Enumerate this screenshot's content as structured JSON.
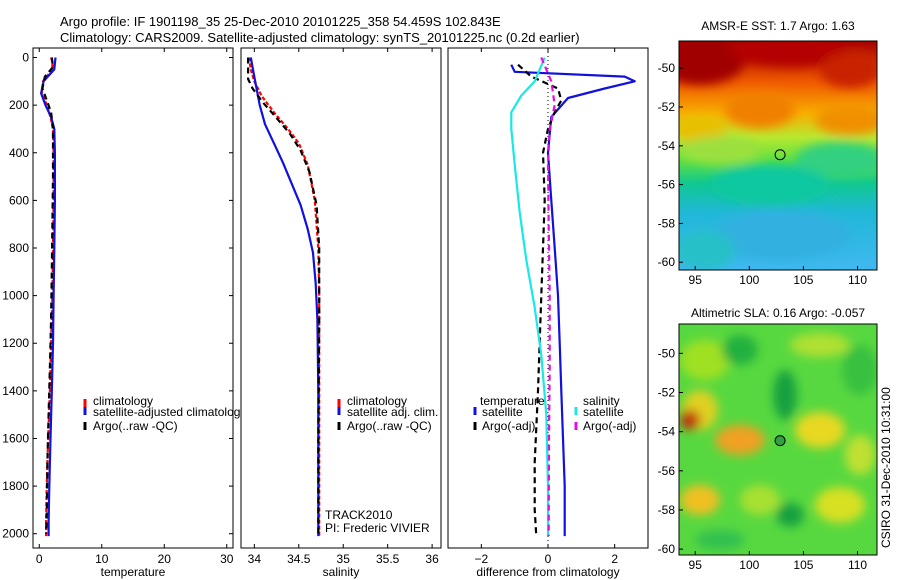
{
  "title_line1": "Argo profile: IF 1901198_35 25-Dec-2010 20101225_358 54.459S 102.843E",
  "title_line2": "Climatology: CARS2009. Satellite-adjusted climatology: synTS_20101225.nc (0.2d earlier)",
  "footer": "CSIRO 31-Dec-2010 10:31:00",
  "colors": {
    "climatology": "#ff0000",
    "satellite": "#1010e0",
    "argo": "#000000",
    "sat_salinity": "#18e8e8",
    "argo_salinity": "#e010e0"
  },
  "chart_data": [
    {
      "type": "line",
      "id": "temperature",
      "xlabel": "temperature",
      "ylabel": "",
      "xlim": [
        -1,
        31
      ],
      "ylim": [
        2060,
        -40
      ],
      "xticks": [
        0,
        10,
        20,
        30
      ],
      "yticks": [
        0,
        200,
        400,
        600,
        800,
        1000,
        1200,
        1400,
        1600,
        1800,
        2000
      ],
      "legend": [
        "climatology",
        "satellite-adjusted climatolog",
        "Argo(..raw -QC)"
      ],
      "series": [
        {
          "name": "climatology",
          "color": "#ff0000",
          "dash": "4,2",
          "x": [
            1.9,
            2.1,
            2.1,
            0.6,
            0.4,
            1.2,
            1.8,
            2.2,
            2.3,
            2.3,
            2.2,
            2.1,
            1.9,
            1.7,
            1.5,
            1.3,
            1.2,
            1.1,
            1.1
          ],
          "y": [
            0,
            20,
            50,
            100,
            150,
            200,
            250,
            300,
            400,
            600,
            800,
            1000,
            1200,
            1400,
            1550,
            1700,
            1800,
            1950,
            2010
          ]
        },
        {
          "name": "satellite-adjusted climatology",
          "color": "#1010e0",
          "dash": "",
          "x": [
            2.6,
            2.4,
            0.7,
            0.3,
            1.0,
            1.9,
            2.4,
            2.5,
            2.5,
            2.4,
            2.3,
            2.2,
            2.0,
            1.8,
            1.6,
            1.5,
            1.5
          ],
          "y": [
            0,
            50,
            100,
            150,
            200,
            250,
            300,
            400,
            600,
            800,
            1000,
            1200,
            1400,
            1600,
            1800,
            1950,
            2010
          ]
        },
        {
          "name": "Argo(..raw -QC)",
          "color": "#000000",
          "dash": "6,4",
          "x": [
            2.0,
            2.2,
            0.9,
            0.5,
            1.2,
            1.9,
            2.2,
            2.2,
            2.1,
            2.0,
            1.9,
            1.7,
            1.5,
            1.3,
            1.2,
            1.1
          ],
          "y": [
            0,
            40,
            80,
            130,
            180,
            230,
            300,
            500,
            700,
            900,
            1100,
            1300,
            1500,
            1700,
            1900,
            2000
          ]
        }
      ]
    },
    {
      "type": "line",
      "id": "salinity",
      "xlabel": "salinity",
      "ylabel": "",
      "xlim": [
        33.85,
        36.1
      ],
      "ylim": [
        2060,
        -40
      ],
      "xticks": [
        34,
        34.5,
        35,
        35.5,
        36
      ],
      "xticklabels": [
        "34",
        "34.5",
        "35",
        "35.5",
        "36"
      ],
      "legend": [
        "climatology",
        "satellite adj. clim.",
        "Argo(..raw -QC)"
      ],
      "annotation": [
        "TRACK2010",
        "PI: Frederic VIVIER"
      ],
      "series": [
        {
          "name": "climatology",
          "color": "#ff0000",
          "dash": "4,2",
          "x": [
            33.94,
            33.96,
            34.0,
            34.08,
            34.22,
            34.38,
            34.5,
            34.6,
            34.68,
            34.72,
            34.73,
            34.73,
            34.73,
            34.73
          ],
          "y": [
            0,
            50,
            100,
            160,
            230,
            300,
            360,
            450,
            600,
            800,
            1000,
            1400,
            1800,
            2010
          ]
        },
        {
          "name": "satellite adj. clim.",
          "color": "#1010e0",
          "dash": "",
          "x": [
            33.96,
            33.99,
            34.02,
            34.06,
            34.12,
            34.22,
            34.32,
            34.42,
            34.52,
            34.6,
            34.66,
            34.69,
            34.71,
            34.72,
            34.72,
            34.72
          ],
          "y": [
            0,
            60,
            120,
            200,
            280,
            360,
            440,
            530,
            620,
            720,
            820,
            950,
            1100,
            1400,
            1800,
            2010
          ]
        },
        {
          "name": "Argo(..raw -QC)",
          "color": "#000000",
          "dash": "6,4",
          "x": [
            33.93,
            33.93,
            33.98,
            34.1,
            34.24,
            34.4,
            34.52,
            34.62,
            34.7,
            34.73,
            34.73,
            34.72,
            34.72
          ],
          "y": [
            0,
            90,
            130,
            190,
            250,
            320,
            390,
            480,
            620,
            800,
            1100,
            1600,
            2010
          ]
        }
      ]
    },
    {
      "type": "line",
      "id": "difference",
      "xlabel": "difference from climatology",
      "ylabel": "",
      "xlim": [
        -3,
        3
      ],
      "ylim": [
        2060,
        -40
      ],
      "xticks": [
        -2,
        0,
        2
      ],
      "xticklabels": [
        "−2",
        "0",
        "2"
      ],
      "legend": [
        "temperature",
        "satellite",
        "Argo(-adj)",
        "salinity",
        "satellite",
        "Argo(-adj)"
      ],
      "series": [
        {
          "name": "temperature satellite",
          "color": "#1010e0",
          "dash": "",
          "x": [
            -1.1,
            -1.0,
            2.3,
            2.6,
            1.7,
            0.6,
            0.1,
            0.0,
            0.1,
            0.2,
            0.3,
            0.35,
            0.4,
            0.45,
            0.5,
            0.5,
            0.5
          ],
          "y": [
            30,
            60,
            80,
            100,
            130,
            170,
            250,
            400,
            600,
            800,
            1000,
            1200,
            1400,
            1600,
            1800,
            1950,
            2010
          ]
        },
        {
          "name": "temperature Argo(-adj)",
          "color": "#000000",
          "dash": "6,4",
          "x": [
            -0.9,
            -0.5,
            0.3,
            0.4,
            0.2,
            0.0,
            -0.15,
            -0.1,
            -0.2,
            -0.3,
            -0.4,
            -0.4,
            -0.35
          ],
          "y": [
            30,
            80,
            130,
            180,
            230,
            300,
            400,
            600,
            1000,
            1400,
            1700,
            1900,
            2010
          ]
        },
        {
          "name": "salinity satellite",
          "color": "#18e8e8",
          "dash": "",
          "x": [
            -0.1,
            -0.4,
            -0.8,
            -1.1,
            -1.1,
            -1.0,
            -0.85,
            -0.65,
            -0.4,
            -0.2,
            -0.05,
            0.0,
            0.0
          ],
          "y": [
            0,
            100,
            160,
            230,
            300,
            450,
            650,
            850,
            1050,
            1250,
            1500,
            1800,
            2010
          ]
        },
        {
          "name": "salinity Argo(-adj)",
          "color": "#e010e0",
          "dash": "6,4",
          "x": [
            -0.2,
            0.1,
            0.2,
            0.05,
            0.0,
            0.02,
            0.05,
            0.05,
            0.03,
            0.02
          ],
          "y": [
            0,
            100,
            200,
            300,
            450,
            700,
            1000,
            1300,
            1600,
            2010
          ]
        }
      ]
    },
    {
      "type": "heatmap",
      "id": "sst_map",
      "title": "AMSR-E SST: 1.7 Argo: 1.63",
      "xlim": [
        93.5,
        111.8
      ],
      "ylim": [
        -60.4,
        -48.6
      ],
      "xticks": [
        95,
        100,
        105,
        110
      ],
      "yticks": [
        -50,
        -52,
        -54,
        -56,
        -58,
        -60
      ],
      "marker": {
        "lon": 102.843,
        "lat": -54.459
      }
    },
    {
      "type": "heatmap",
      "id": "sla_map",
      "title": "Altimetric SLA: 0.16 Argo: -0.057",
      "xlim": [
        93.5,
        111.8
      ],
      "ylim": [
        -60.3,
        -48.5
      ],
      "xticks": [
        95,
        100,
        105,
        110
      ],
      "yticks": [
        -50,
        -52,
        -54,
        -56,
        -58,
        -60
      ],
      "marker": {
        "lon": 102.843,
        "lat": -54.459
      }
    }
  ]
}
